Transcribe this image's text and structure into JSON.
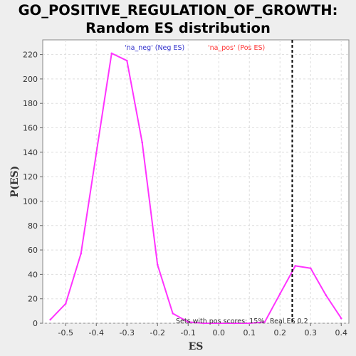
{
  "chart_data": {
    "type": "line",
    "title_lines": [
      "GO_POSITIVE_REGULATION_OF_GROWTH:",
      "Random ES distribution"
    ],
    "xlabel": "ES",
    "ylabel": "P(ES)",
    "xlim": [
      -0.575,
      0.425
    ],
    "ylim": [
      0,
      232
    ],
    "xticks": [
      -0.5,
      -0.4,
      -0.3,
      -0.2,
      -0.1,
      0.0,
      0.1,
      0.2,
      0.3,
      0.4
    ],
    "xtick_labels": [
      "-0.5",
      "-0.4",
      "-0.3",
      "-0.2",
      "-0.1",
      "0.0",
      "0.1",
      "0.2",
      "0.3",
      "0.4"
    ],
    "yticks": [
      0,
      20,
      40,
      60,
      80,
      100,
      120,
      140,
      160,
      180,
      200,
      220
    ],
    "ytick_labels": [
      "0",
      "20",
      "40",
      "60",
      "80",
      "100",
      "120",
      "140",
      "160",
      "180",
      "200",
      "220"
    ],
    "grid": true,
    "series": [
      {
        "color": "#ff33ff",
        "x": [
          -0.55,
          -0.5,
          -0.45,
          -0.4,
          -0.35,
          -0.3,
          -0.25,
          -0.2,
          -0.15,
          -0.1,
          -0.05,
          0.0,
          0.05,
          0.1,
          0.15,
          0.2,
          0.25,
          0.3,
          0.35,
          0.4
        ],
        "y": [
          3,
          16,
          57,
          139,
          221,
          215,
          148,
          48,
          8,
          1,
          0,
          0,
          0,
          0,
          1,
          24,
          47,
          45,
          23,
          4
        ]
      }
    ],
    "real_es": 0.24,
    "legend": [
      {
        "text": "'na_neg' (Neg ES)",
        "color": "#3333cc"
      },
      {
        "text": "'na_pos' (Pos ES)",
        "color": "#ff3333"
      }
    ],
    "annotations": {
      "pos_scores": "Sets with pos scores: 15%",
      "real_es": "Real ES 0.2"
    }
  }
}
